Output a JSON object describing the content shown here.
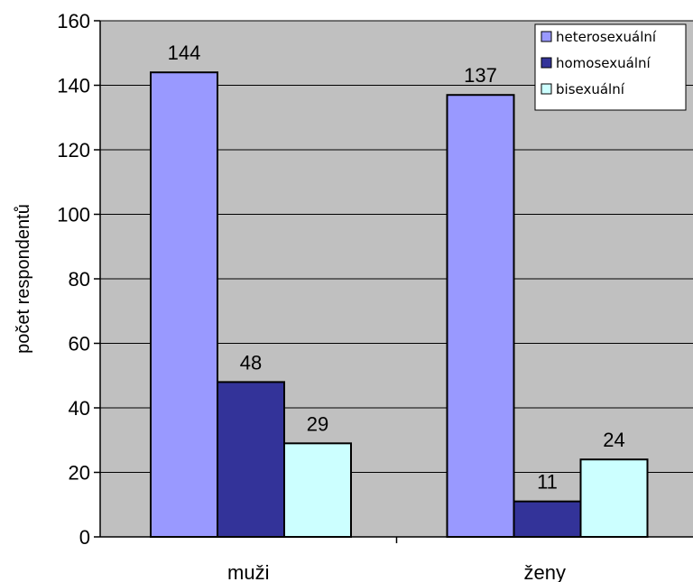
{
  "chart_data": {
    "type": "bar",
    "categories": [
      "muži",
      "ženy"
    ],
    "series": [
      {
        "name": "heterosexuální",
        "values": [
          144,
          137
        ],
        "color": "#9999FF"
      },
      {
        "name": "homosexuální",
        "values": [
          48,
          11
        ],
        "color": "#333399"
      },
      {
        "name": "bisexuální",
        "values": [
          29,
          24
        ],
        "color": "#CCFFFF"
      }
    ],
    "title": "",
    "xlabel": "",
    "ylabel": "počet respondentů",
    "ylim": [
      0,
      160
    ],
    "yticks": [
      0,
      20,
      40,
      60,
      80,
      100,
      120,
      140,
      160
    ],
    "grid": true,
    "plot_background": "#C0C0C0",
    "legend_position": "top-right",
    "data_labels": true
  }
}
